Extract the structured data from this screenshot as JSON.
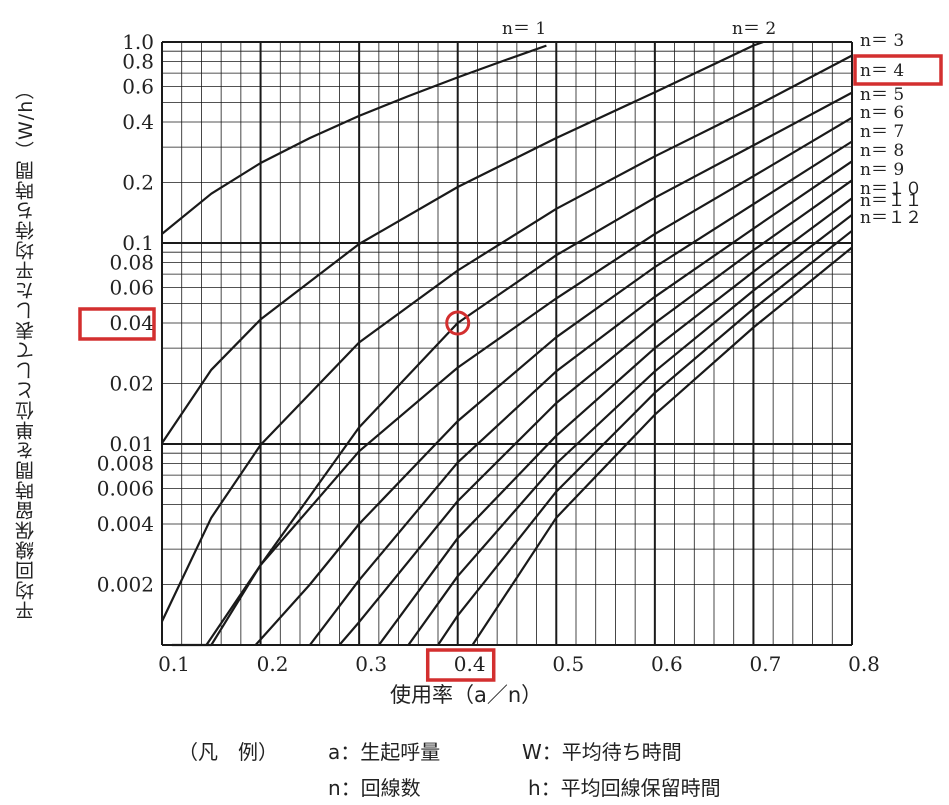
{
  "chart_data": {
    "type": "line",
    "title": "",
    "xlabel": "使用率（a／n）",
    "ylabel": "平均回線保留時間を単位として表した平均待ち時間（W/h）",
    "x_scale": "linear",
    "y_scale": "log",
    "xlim": [
      0.1,
      0.8
    ],
    "ylim": [
      0.001,
      1.0
    ],
    "x_ticks": [
      "0.1",
      "0.2",
      "0.3",
      "0.4",
      "0.5",
      "0.6",
      "0.7",
      "0.8"
    ],
    "y_ticks": [
      "0.002",
      "0.004",
      "0.006",
      "0.008",
      "0.01",
      "0.02",
      "0.04",
      "0.06",
      "0.08",
      "0.1",
      "0.2",
      "0.4",
      "0.6",
      "0.8",
      "1.0"
    ],
    "grid": true,
    "series": [
      {
        "name": "n＝ 1",
        "x": [
          0.1,
          0.15,
          0.2,
          0.25,
          0.3,
          0.35,
          0.4,
          0.45,
          0.49
        ],
        "y": [
          0.111,
          0.176,
          0.25,
          0.333,
          0.429,
          0.538,
          0.667,
          0.818,
          0.96
        ]
      },
      {
        "name": "n＝ 2",
        "x": [
          0.1,
          0.15,
          0.2,
          0.3,
          0.4,
          0.5,
          0.6,
          0.7,
          0.71
        ],
        "y": [
          0.0101,
          0.0234,
          0.0417,
          0.0989,
          0.19,
          0.333,
          0.5625,
          0.961,
          1.0
        ]
      },
      {
        "name": "n＝ 3",
        "x": [
          0.1,
          0.15,
          0.2,
          0.3,
          0.4,
          0.5,
          0.6,
          0.7,
          0.8
        ],
        "y": [
          0.00131,
          0.0043,
          0.0099,
          0.032,
          0.073,
          0.148,
          0.27,
          0.473,
          0.857
        ]
      },
      {
        "name": "n＝ 4",
        "x": [
          0.11,
          0.15,
          0.2,
          0.3,
          0.4,
          0.5,
          0.6,
          0.7,
          0.8
        ],
        "y": [
          0.001,
          0.0009,
          0.0025,
          0.0121,
          0.04,
          0.087,
          0.168,
          0.306,
          0.56
        ]
      },
      {
        "name": "n＝ 5",
        "x": [
          0.145,
          0.2,
          0.3,
          0.4,
          0.5,
          0.6,
          0.7,
          0.8
        ],
        "y": [
          0.001,
          0.0025,
          0.0092,
          0.024,
          0.053,
          0.111,
          0.215,
          0.42
        ]
      },
      {
        "name": "n＝ 6",
        "x": [
          0.195,
          0.25,
          0.3,
          0.4,
          0.5,
          0.6,
          0.7,
          0.8
        ],
        "y": [
          0.001,
          0.002,
          0.004,
          0.013,
          0.034,
          0.076,
          0.156,
          0.32
        ]
      },
      {
        "name": "n＝ 7",
        "x": [
          0.25,
          0.3,
          0.4,
          0.5,
          0.6,
          0.7,
          0.8
        ],
        "y": [
          0.001,
          0.0021,
          0.0081,
          0.023,
          0.054,
          0.118,
          0.255
        ]
      },
      {
        "name": "n＝ 8",
        "x": [
          0.28,
          0.3,
          0.4,
          0.5,
          0.6,
          0.7,
          0.8
        ],
        "y": [
          0.001,
          0.0013,
          0.0052,
          0.016,
          0.04,
          0.092,
          0.205
        ]
      },
      {
        "name": "n＝ 9",
        "x": [
          0.32,
          0.4,
          0.5,
          0.6,
          0.7,
          0.8
        ],
        "y": [
          0.001,
          0.0034,
          0.011,
          0.03,
          0.072,
          0.167
        ]
      },
      {
        "name": "n＝１０",
        "x": [
          0.35,
          0.4,
          0.5,
          0.6,
          0.7,
          0.8
        ],
        "y": [
          0.001,
          0.0022,
          0.008,
          0.023,
          0.058,
          0.138
        ]
      },
      {
        "name": "n＝１１",
        "x": [
          0.38,
          0.4,
          0.5,
          0.6,
          0.7,
          0.8
        ],
        "y": [
          0.001,
          0.0014,
          0.0058,
          0.018,
          0.047,
          0.115
        ]
      },
      {
        "name": "n＝１２",
        "x": [
          0.415,
          0.5,
          0.6,
          0.7,
          0.8
        ],
        "y": [
          0.001,
          0.0043,
          0.014,
          0.038,
          0.095
        ]
      }
    ],
    "highlight_point": {
      "x": 0.4,
      "y": 0.04,
      "series": "n＝ 4"
    },
    "highlighted_labels": [
      "0.04",
      "0.4",
      "n＝ 4"
    ]
  },
  "ui": {
    "accent": "#d32f2f",
    "line_color": "#1a1a1a"
  },
  "legend": {
    "caption": "（凡　例）",
    "items": [
      {
        "symbol": "a",
        "text": "：生起呼量"
      },
      {
        "symbol": "W",
        "text": "：平均待ち時間"
      },
      {
        "symbol": "n",
        "text": "：回線数"
      },
      {
        "symbol": "h",
        "text": "：平均回線保留時間"
      }
    ]
  }
}
